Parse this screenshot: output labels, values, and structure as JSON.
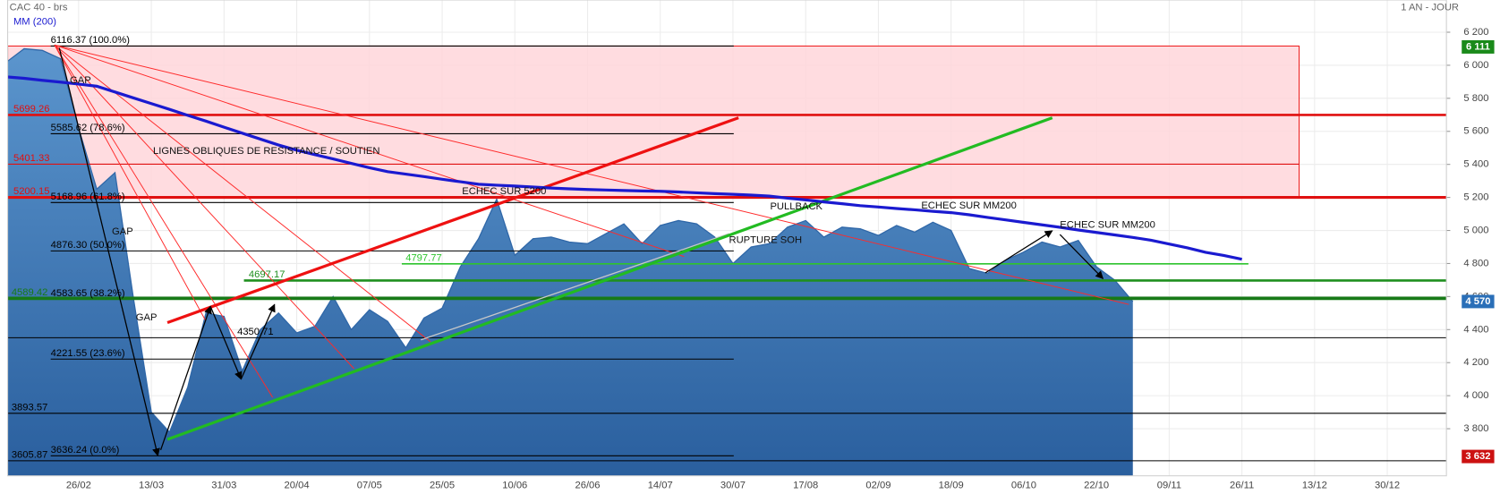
{
  "chart_data": {
    "type": "area",
    "title": "CAC 40 - brs",
    "period": "1 AN - JOUR",
    "categories": [
      null,
      null,
      null,
      null,
      "26/02",
      null,
      null,
      null,
      "13/03",
      null,
      null,
      null,
      "31/03",
      null,
      null,
      null,
      "20/04",
      null,
      null,
      null,
      "07/05",
      null,
      null,
      null,
      "25/05",
      null,
      null,
      null,
      "10/06",
      null,
      null,
      null,
      "26/06",
      null,
      null,
      null,
      "14/07",
      null,
      null,
      null,
      "30/07",
      null,
      null,
      null,
      "17/08",
      null,
      null,
      null,
      "02/09",
      null,
      null,
      null,
      "18/09",
      null,
      null,
      null,
      "06/10",
      null,
      null,
      null,
      "22/10",
      null,
      null,
      null,
      "09/11",
      null,
      null,
      null,
      "26/11",
      null,
      null,
      null,
      "13/12",
      null,
      null,
      null,
      "30/12",
      null,
      null,
      null
    ],
    "series": [
      {
        "color": "#2f67a8",
        "values": [
          6017,
          6100,
          6090,
          6040,
          5620,
          5250,
          5350,
          4600,
          3900,
          3780,
          4050,
          4500,
          4480,
          4150,
          4400,
          4500,
          4380,
          4420,
          4600,
          4400,
          4520,
          4450,
          4290,
          4470,
          4530,
          4780,
          4950,
          5190,
          4850,
          4950,
          4960,
          4930,
          4920,
          4980,
          5040,
          4920,
          5030,
          5060,
          5040,
          4960,
          4800,
          4900,
          4920,
          5020,
          5060,
          4960,
          5020,
          5010,
          4970,
          5030,
          4990,
          5050,
          5000,
          4770,
          4740,
          4820,
          4870,
          4930,
          4900,
          4940,
          4780,
          4700,
          4570,
          null,
          null,
          null,
          null,
          null,
          null,
          null,
          null,
          null,
          null,
          null,
          null,
          null,
          null,
          null,
          null,
          null
        ]
      },
      {
        "name": "MM (200)",
        "color": "#1a1ad0",
        "values": [
          5930,
          5921,
          5909,
          5898,
          5886,
          5873,
          5838,
          5803,
          5768,
          5733,
          5697,
          5662,
          5625,
          5589,
          5553,
          5517,
          5486,
          5459,
          5433,
          5406,
          5380,
          5356,
          5341,
          5326,
          5310,
          5295,
          5280,
          5274,
          5269,
          5263,
          5257,
          5252,
          5248,
          5245,
          5242,
          5239,
          5237,
          5233,
          5228,
          5223,
          5219,
          5214,
          5208,
          5196,
          5185,
          5173,
          5162,
          5150,
          5142,
          5133,
          5125,
          5116,
          5108,
          5095,
          5079,
          5064,
          5049,
          5034,
          5019,
          5003,
          4988,
          4973,
          4958,
          4941,
          4918,
          4895,
          4868,
          4849,
          4826,
          null,
          null,
          null,
          null,
          null,
          null,
          null,
          null,
          null,
          null,
          null
        ]
      }
    ],
    "ylim": [
      3515,
      6395
    ],
    "yticks": [
      {
        "value": 6200,
        "label": "6 200"
      },
      {
        "value": 6000,
        "label": "6 000"
      },
      {
        "value": 5800,
        "label": "5 800"
      },
      {
        "value": 5600,
        "label": "5 600"
      },
      {
        "value": 5400,
        "label": "5 400"
      },
      {
        "value": 5200,
        "label": "5 200"
      },
      {
        "value": 5000,
        "label": "5 000"
      },
      {
        "value": 4800,
        "label": "4 800"
      },
      {
        "value": 4600,
        "label": "4 600"
      },
      {
        "value": 4400,
        "label": "4 400"
      },
      {
        "value": 4200,
        "label": "4 200"
      },
      {
        "value": 4000,
        "label": "4 000"
      },
      {
        "value": 3800,
        "label": "3 800"
      }
    ],
    "grid": true,
    "zone": {
      "from": 5200.15,
      "to": 6116.37,
      "color": "#ffd6da"
    },
    "levels": [
      {
        "value": 6116.37,
        "label": "6116.37  (100.0%)",
        "color": "#000000"
      },
      {
        "value": 5585.62,
        "label": "5585.62  (78.6%)",
        "color": "#000000"
      },
      {
        "value": 5168.96,
        "label": "5168.96  (61.8%)",
        "color": "#000000"
      },
      {
        "value": 4876.3,
        "label": "4876.30  (50.0%)",
        "color": "#000000"
      },
      {
        "value": 4583.65,
        "label": "4583.65  (38.2%)",
        "color": "#000000"
      },
      {
        "value": 4221.55,
        "label": "4221.55  (23.6%)",
        "color": "#000000"
      },
      {
        "value": 3636.24,
        "label": "3636.24  (0.0%)",
        "color": "#000000"
      },
      {
        "value": 5699.26,
        "label": "5699.26",
        "color": "#e01010"
      },
      {
        "value": 5401.33,
        "label": "5401.33",
        "color": "#e01010"
      },
      {
        "value": 5200.15,
        "label": "5200.15",
        "color": "#e01010"
      },
      {
        "value": 4797.77,
        "label": "4797.77",
        "color": "#2ec42e"
      },
      {
        "value": 4697.17,
        "label": "4697.17",
        "color": "#1f8f1f"
      },
      {
        "value": 4589.42,
        "label": "4589.42",
        "color": "#177a17"
      },
      {
        "value": 4350.71,
        "label": "4350.71",
        "color": "#000000"
      },
      {
        "value": 3893.57,
        "label": "3893.57",
        "color": "#000000"
      },
      {
        "value": 3605.87,
        "label": "3605.87",
        "color": "#000000"
      }
    ],
    "price_tags": [
      {
        "value": 6111,
        "label": "6 111",
        "color": "#1a8a1a"
      },
      {
        "value": 4570,
        "label": "4 570",
        "color": "#2a6fb8"
      },
      {
        "value": 3632,
        "label": "3 632",
        "color": "#cc1111"
      }
    ],
    "annotations": [
      "GAP",
      "GAP",
      "GAP",
      "LIGNES OBLIQUES DE RESISTANCE / SOUTIEN",
      "ECHEC SUR 5200",
      "PULLBACK",
      "ECHEC SUR MM200",
      "ECHEC SUR MM200",
      "RUPTURE SOH"
    ]
  }
}
